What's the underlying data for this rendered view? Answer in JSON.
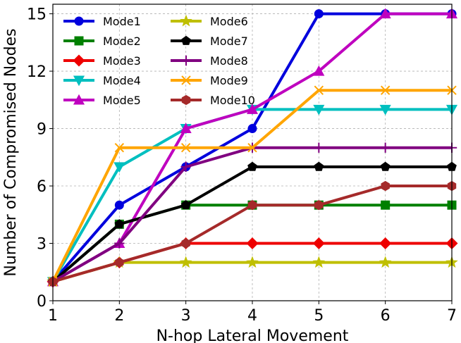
{
  "chart_data": {
    "type": "line",
    "title": "",
    "xlabel": "N-hop Lateral Movement",
    "ylabel": "Number of Compromised Nodes",
    "x": [
      1,
      2,
      3,
      4,
      5,
      6,
      7
    ],
    "xlim": [
      1,
      7
    ],
    "ylim": [
      0,
      15.5
    ],
    "xticks": [
      1,
      2,
      3,
      4,
      5,
      6,
      7
    ],
    "yticks": [
      0,
      3,
      6,
      9,
      12,
      15
    ],
    "grid": true,
    "legend_position": "top-left",
    "legend_columns": 2,
    "series": [
      {
        "name": "Mode1",
        "color": "#0000dd",
        "marker": "circle",
        "values": [
          1,
          5,
          7,
          9,
          15,
          15,
          15
        ]
      },
      {
        "name": "Mode2",
        "color": "#008000",
        "marker": "square",
        "values": [
          1,
          4,
          5,
          5,
          5,
          5,
          5
        ]
      },
      {
        "name": "Mode3",
        "color": "#ee0000",
        "marker": "diamond",
        "values": [
          1,
          2,
          3,
          3,
          3,
          3,
          3
        ]
      },
      {
        "name": "Mode4",
        "color": "#00bfbf",
        "marker": "triangle-down",
        "values": [
          1,
          7,
          9,
          10,
          10,
          10,
          10
        ]
      },
      {
        "name": "Mode5",
        "color": "#bf00bf",
        "marker": "triangle-up",
        "values": [
          1,
          3,
          9,
          10,
          12,
          15,
          15
        ]
      },
      {
        "name": "Mode6",
        "color": "#bfbf00",
        "marker": "star",
        "values": [
          1,
          2,
          2,
          2,
          2,
          2,
          2
        ]
      },
      {
        "name": "Mode7",
        "color": "#000000",
        "marker": "pentagon",
        "values": [
          1,
          4,
          5,
          7,
          7,
          7,
          7
        ]
      },
      {
        "name": "Mode8",
        "color": "#800080",
        "marker": "plus",
        "values": [
          1,
          3,
          7,
          8,
          8,
          8,
          8
        ]
      },
      {
        "name": "Mode9",
        "color": "#ffa500",
        "marker": "x",
        "values": [
          1,
          8,
          8,
          8,
          11,
          11,
          11
        ]
      },
      {
        "name": "Mode10",
        "color": "#a52a2a",
        "marker": "hexagon",
        "values": [
          1,
          2,
          3,
          5,
          5,
          6,
          6
        ]
      }
    ]
  }
}
